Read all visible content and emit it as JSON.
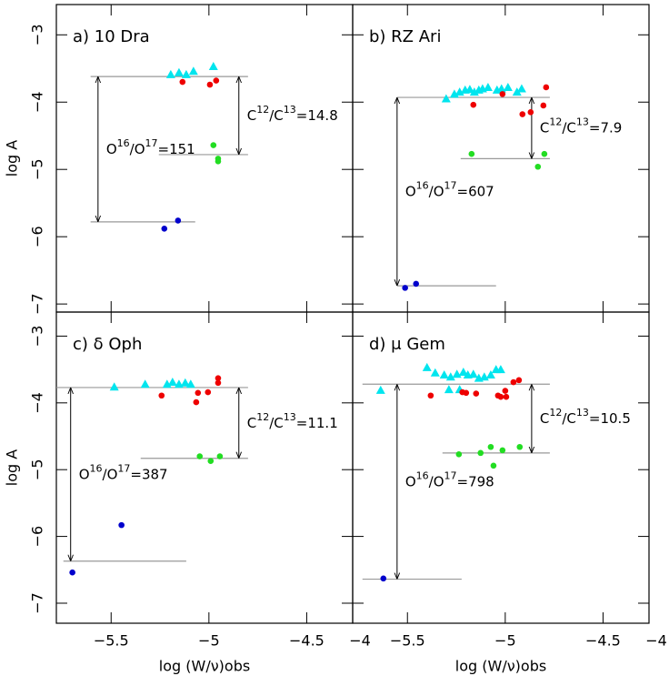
{
  "chart_data": [
    {
      "type": "scatter",
      "title": "a) 10 Dra",
      "ylabel": "log A",
      "xlim": [
        -5.78,
        -4.265
      ],
      "ylim": [
        -7.12,
        -2.55
      ],
      "xticks": [
        -5.5,
        -5,
        -4.5
      ],
      "tick_labels": {
        "x": false,
        "y": true
      },
      "yticks": [
        {
          "value": -3,
          "label": "−3"
        },
        {
          "value": -4,
          "label": "−4"
        },
        {
          "value": -5,
          "label": "−5"
        },
        {
          "value": -6,
          "label": "−6"
        },
        {
          "value": -7,
          "label": "−7"
        }
      ],
      "series": [
        {
          "color": "#00e5ee",
          "marker": "triangle",
          "x": [
            -5.195,
            -5.153,
            -5.116,
            -5.079,
            -4.977
          ],
          "values": [
            -3.59,
            -3.56,
            -3.59,
            -3.54,
            -3.47
          ]
        },
        {
          "color": "#ee0000",
          "marker": "circle",
          "x": [
            -5.135,
            -4.995,
            -4.963
          ],
          "values": [
            -3.7,
            -3.74,
            -3.68
          ]
        },
        {
          "color": "#22dd22",
          "marker": "circle",
          "x": [
            -4.977,
            -4.953,
            -4.953
          ],
          "values": [
            -4.64,
            -4.84,
            -4.88
          ]
        },
        {
          "color": "#0000cc",
          "marker": "circle",
          "x": [
            -5.228,
            -5.158
          ],
          "values": [
            -5.88,
            -5.76
          ]
        }
      ],
      "hlines": [
        {
          "y": -3.62,
          "x": [
            -5.605,
            -4.8
          ]
        },
        {
          "y": -4.78,
          "x": [
            -5.256,
            -4.8
          ]
        },
        {
          "y": -5.78,
          "x": [
            -5.605,
            -5.07
          ]
        }
      ],
      "arrows": [
        {
          "x": -4.847,
          "y": [
            -3.62,
            -4.78
          ],
          "label": [
            "C",
            "12",
            "/C",
            "13",
            "=14.8"
          ]
        },
        {
          "x": -5.567,
          "y": [
            -3.62,
            -5.78
          ],
          "label": [
            "O",
            "16",
            "/O",
            "17",
            "=151"
          ]
        }
      ]
    },
    {
      "type": "scatter",
      "title": "b) RZ Ari",
      "xlim": [
        -5.78,
        -4.265
      ],
      "ylim": [
        -7.12,
        -2.55
      ],
      "xticks": [
        -5.5,
        -5,
        -4.5
      ],
      "yticks": [
        -3,
        -4,
        -5,
        -6,
        -7
      ],
      "tick_labels": {
        "x": false,
        "y": false
      },
      "series": [
        {
          "color": "#00e5ee",
          "marker": "triangle",
          "x": [
            -5.302,
            -5.26,
            -5.233,
            -5.205,
            -5.181,
            -5.158,
            -5.135,
            -5.116,
            -5.088,
            -5.042,
            -5.019,
            -4.986,
            -4.94,
            -4.916
          ],
          "values": [
            -3.95,
            -3.88,
            -3.85,
            -3.82,
            -3.81,
            -3.85,
            -3.82,
            -3.8,
            -3.78,
            -3.82,
            -3.8,
            -3.78,
            -3.85,
            -3.8
          ]
        },
        {
          "color": "#ee0000",
          "marker": "circle",
          "x": [
            -5.163,
            -5.014,
            -4.912,
            -4.87,
            -4.805,
            -4.791
          ],
          "values": [
            -4.04,
            -3.88,
            -4.18,
            -4.15,
            -4.05,
            -3.78
          ]
        },
        {
          "color": "#22dd22",
          "marker": "circle",
          "x": [
            -5.172,
            -4.833,
            -4.8
          ],
          "values": [
            -4.77,
            -4.96,
            -4.77
          ]
        },
        {
          "color": "#0000cc",
          "marker": "circle",
          "x": [
            -5.512,
            -5.456
          ],
          "values": [
            -6.76,
            -6.7
          ]
        }
      ],
      "hlines": [
        {
          "y": -3.93,
          "x": [
            -5.553,
            -4.772
          ]
        },
        {
          "y": -4.84,
          "x": [
            -5.228,
            -4.772
          ]
        },
        {
          "y": -6.73,
          "x": [
            -5.553,
            -5.047
          ]
        }
      ],
      "arrows": [
        {
          "x": -4.865,
          "y": [
            -3.93,
            -4.84
          ],
          "label": [
            "C",
            "12",
            "/C",
            "13",
            "=7.9"
          ]
        },
        {
          "x": -5.553,
          "y": [
            -3.93,
            -6.73
          ],
          "label": [
            "O",
            "16",
            "/O",
            "17",
            "=607"
          ]
        }
      ]
    },
    {
      "type": "scatter",
      "title": "c) δ Oph",
      "ylabel": "log A",
      "xlabel": "log (W/ν)obs",
      "xlim": [
        -5.78,
        -4.265
      ],
      "ylim": [
        -7.3,
        -2.64
      ],
      "tick_labels": {
        "x": true,
        "y": true
      },
      "xticks": [
        {
          "value": -5.5,
          "label": "−5.5"
        },
        {
          "value": -5,
          "label": "−5"
        },
        {
          "value": -4.5,
          "label": "−4.5"
        },
        {
          "value": -4,
          "label": "−4"
        }
      ],
      "yticks": [
        {
          "value": -3,
          "label": "−3"
        },
        {
          "value": -4,
          "label": "−4"
        },
        {
          "value": -5,
          "label": "−5"
        },
        {
          "value": -6,
          "label": "−6"
        },
        {
          "value": -7,
          "label": "−7"
        }
      ],
      "series": [
        {
          "color": "#00e5ee",
          "marker": "triangle",
          "x": [
            -5.484,
            -5.326,
            -5.214,
            -5.186,
            -5.153,
            -5.121,
            -5.093
          ],
          "values": [
            -3.76,
            -3.72,
            -3.72,
            -3.69,
            -3.72,
            -3.7,
            -3.72
          ]
        },
        {
          "color": "#ee0000",
          "marker": "circle",
          "x": [
            -5.242,
            -5.065,
            -5.056,
            -5.005,
            -4.953,
            -4.953
          ],
          "values": [
            -3.89,
            -3.99,
            -3.85,
            -3.84,
            -3.7,
            -3.63
          ]
        },
        {
          "color": "#22dd22",
          "marker": "circle",
          "x": [
            -5.047,
            -4.991,
            -4.944
          ],
          "values": [
            -4.8,
            -4.87,
            -4.8
          ]
        },
        {
          "color": "#0000cc",
          "marker": "circle",
          "x": [
            -5.698,
            -5.447
          ],
          "values": [
            -6.54,
            -5.83
          ]
        }
      ],
      "hlines": [
        {
          "y": -3.77,
          "x": [
            -5.78,
            -4.8
          ]
        },
        {
          "y": -4.83,
          "x": [
            -5.349,
            -4.8
          ]
        },
        {
          "y": -6.37,
          "x": [
            -5.744,
            -5.116
          ]
        }
      ],
      "arrows": [
        {
          "x": -4.847,
          "y": [
            -3.77,
            -4.83
          ],
          "label": [
            "C",
            "12",
            "/C",
            "13",
            "=11.1"
          ]
        },
        {
          "x": -5.707,
          "y": [
            -3.77,
            -6.37
          ],
          "label": [
            "O",
            "16",
            "/O",
            "17",
            "=387"
          ]
        }
      ]
    },
    {
      "type": "scatter",
      "title": "d) μ Gem",
      "xlabel": "log (W/ν)obs",
      "xlim": [
        -5.78,
        -4.265
      ],
      "ylim": [
        -7.3,
        -2.64
      ],
      "yticks": [
        -3,
        -4,
        -5,
        -6,
        -7
      ],
      "tick_labels": {
        "x": true,
        "y": false
      },
      "xticks": [
        {
          "value": -5.5,
          "label": "−5.5"
        },
        {
          "value": -5,
          "label": "−5"
        },
        {
          "value": -4.5,
          "label": "−4.5"
        },
        {
          "value": -4,
          "label": "−4"
        }
      ],
      "series": [
        {
          "color": "#00e5ee",
          "marker": "triangle",
          "x": [
            -5.637,
            -5.4,
            -5.358,
            -5.312,
            -5.279,
            -5.247,
            -5.214,
            -5.191,
            -5.163,
            -5.135,
            -5.107,
            -5.074,
            -5.047,
            -5.023,
            -5.288,
            -5.233
          ],
          "values": [
            -3.81,
            -3.47,
            -3.55,
            -3.58,
            -3.61,
            -3.57,
            -3.54,
            -3.58,
            -3.57,
            -3.63,
            -3.61,
            -3.58,
            -3.5,
            -3.5,
            -3.8,
            -3.8
          ]
        },
        {
          "color": "#ee0000",
          "marker": "circle",
          "x": [
            -5.381,
            -5.219,
            -5.2,
            -5.149,
            -5.037,
            -5.023,
            -5.0,
            -4.995,
            -4.958,
            -4.93
          ],
          "values": [
            -3.89,
            -3.84,
            -3.85,
            -3.86,
            -3.89,
            -3.91,
            -3.82,
            -3.91,
            -3.69,
            -3.66
          ]
        },
        {
          "color": "#22dd22",
          "marker": "circle",
          "x": [
            -5.237,
            -5.126,
            -5.074,
            -5.014,
            -5.06,
            -4.926
          ],
          "values": [
            -4.77,
            -4.75,
            -4.66,
            -4.71,
            -4.94,
            -4.66
          ]
        },
        {
          "color": "#0000cc",
          "marker": "circle",
          "x": [
            -5.623
          ],
          "values": [
            -6.63
          ]
        }
      ],
      "hlines": [
        {
          "y": -3.72,
          "x": [
            -5.73,
            -4.772
          ]
        },
        {
          "y": -4.75,
          "x": [
            -5.321,
            -4.772
          ]
        },
        {
          "y": -6.64,
          "x": [
            -5.73,
            -5.223
          ]
        }
      ],
      "arrows": [
        {
          "x": -4.865,
          "y": [
            -3.72,
            -4.75
          ],
          "label": [
            "C",
            "12",
            "/C",
            "13",
            "=10.5"
          ]
        },
        {
          "x": -5.553,
          "y": [
            -3.72,
            -6.64
          ],
          "label": [
            "O",
            "16",
            "/O",
            "17",
            "=798"
          ]
        }
      ]
    }
  ]
}
